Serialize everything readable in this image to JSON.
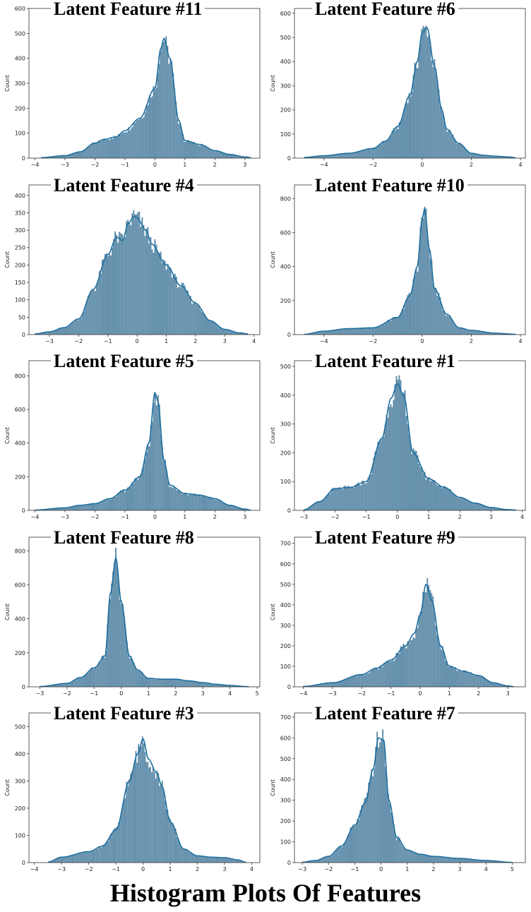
{
  "figure_title": "Histogram Plots Of Features",
  "colors": {
    "bar": "#5c8aa8",
    "bar_edge": "#ffffff",
    "kde": "#1f6f9f",
    "axis": "#333333"
  },
  "chart_data": [
    {
      "type": "bar",
      "subtype": "histogram_kde",
      "title": "Latent Feature #11",
      "ylabel": "Count",
      "xlabel": "",
      "xlim": [
        -4.2,
        3.5
      ],
      "ylim": [
        0,
        600
      ],
      "yticks": [
        0,
        100,
        200,
        300,
        400,
        500,
        600
      ],
      "xticks": [
        -4,
        -3,
        -2,
        -1,
        0,
        1,
        2,
        3
      ],
      "curve": {
        "x": [
          -3.8,
          -3,
          -2.5,
          -2,
          -1.7,
          -1.3,
          -1,
          -0.5,
          0,
          0.2,
          0.3,
          0.5,
          0.8,
          1,
          1.5,
          2,
          2.5,
          3,
          3.2
        ],
        "y": [
          2,
          10,
          25,
          60,
          75,
          85,
          110,
          160,
          280,
          440,
          480,
          400,
          150,
          70,
          55,
          30,
          15,
          5,
          2
        ]
      }
    },
    {
      "type": "bar",
      "subtype": "histogram_kde",
      "title": "Latent Feature #6",
      "ylabel": "Count",
      "xlabel": "",
      "xlim": [
        -5.2,
        4.2
      ],
      "ylim": [
        0,
        620
      ],
      "yticks": [
        0,
        100,
        200,
        300,
        400,
        500,
        600
      ],
      "xticks": [
        -4,
        -2,
        0,
        2,
        4
      ],
      "curve": {
        "x": [
          -4.8,
          -4,
          -3,
          -2,
          -1.5,
          -1,
          -0.5,
          -0.2,
          0,
          0.2,
          0.5,
          0.8,
          1,
          1.5,
          2,
          2.5,
          3,
          3.5,
          3.8
        ],
        "y": [
          3,
          10,
          20,
          40,
          70,
          130,
          260,
          400,
          520,
          540,
          380,
          200,
          120,
          60,
          20,
          12,
          8,
          5,
          2
        ]
      }
    },
    {
      "type": "bar",
      "subtype": "histogram_kde",
      "title": "Latent Feature #4",
      "ylabel": "Count",
      "xlabel": "",
      "xlim": [
        -3.7,
        4.2
      ],
      "ylim": [
        0,
        430
      ],
      "yticks": [
        0,
        50,
        100,
        150,
        200,
        250,
        300,
        350,
        400
      ],
      "xticks": [
        -3,
        -2,
        -1,
        0,
        1,
        2,
        3,
        4
      ],
      "curve": {
        "x": [
          -3.5,
          -3,
          -2.5,
          -2,
          -1.5,
          -1,
          -0.7,
          -0.5,
          -0.3,
          -0.1,
          0,
          0.3,
          0.5,
          1,
          1.5,
          2,
          2.5,
          3,
          3.5,
          3.8
        ],
        "y": [
          2,
          8,
          20,
          45,
          130,
          230,
          280,
          270,
          320,
          340,
          335,
          300,
          260,
          200,
          140,
          90,
          40,
          15,
          5,
          2
        ]
      }
    },
    {
      "type": "bar",
      "subtype": "histogram_kde",
      "title": "Latent Feature #10",
      "ylabel": "Count",
      "xlabel": "",
      "xlim": [
        -5.2,
        4.2
      ],
      "ylim": [
        0,
        880
      ],
      "yticks": [
        0,
        200,
        400,
        600,
        800
      ],
      "xticks": [
        -4,
        -2,
        0,
        2,
        4
      ],
      "curve": {
        "x": [
          -4.8,
          -4,
          -3,
          -2,
          -1,
          -0.5,
          -0.2,
          0,
          0.1,
          0.3,
          0.5,
          1,
          1.5,
          2,
          3,
          3.8
        ],
        "y": [
          2,
          20,
          35,
          40,
          100,
          230,
          400,
          680,
          740,
          500,
          270,
          120,
          40,
          25,
          8,
          2
        ]
      }
    },
    {
      "type": "bar",
      "subtype": "histogram_kde",
      "title": "Latent Feature #5",
      "ylabel": "Count",
      "xlabel": "",
      "xlim": [
        -4.2,
        3.5
      ],
      "ylim": [
        0,
        890
      ],
      "yticks": [
        0,
        200,
        400,
        600,
        800
      ],
      "xticks": [
        -4,
        -3,
        -2,
        -1,
        0,
        1,
        2,
        3
      ],
      "curve": {
        "x": [
          -4,
          -3,
          -2.5,
          -2,
          -1.5,
          -1,
          -0.5,
          -0.2,
          0,
          0.1,
          0.3,
          0.5,
          1,
          1.5,
          2,
          2.5,
          3,
          3.2
        ],
        "y": [
          2,
          15,
          30,
          40,
          70,
          120,
          200,
          400,
          700,
          650,
          300,
          150,
          100,
          90,
          70,
          30,
          8,
          2
        ]
      }
    },
    {
      "type": "bar",
      "subtype": "histogram_kde",
      "title": "Latent Feature #1",
      "ylabel": "Count",
      "xlabel": "",
      "xlim": [
        -3.3,
        4.1
      ],
      "ylim": [
        0,
        520
      ],
      "yticks": [
        0,
        100,
        200,
        300,
        400,
        500
      ],
      "xticks": [
        -3,
        -2,
        -1,
        0,
        1,
        2,
        3,
        4
      ],
      "curve": {
        "x": [
          -3,
          -2.5,
          -2,
          -1.5,
          -1,
          -0.5,
          -0.2,
          0,
          0.2,
          0.5,
          1,
          1.5,
          2,
          2.5,
          3,
          3.5,
          3.8
        ],
        "y": [
          2,
          30,
          75,
          80,
          100,
          250,
          390,
          440,
          400,
          200,
          110,
          80,
          45,
          25,
          10,
          3,
          1
        ]
      }
    },
    {
      "type": "bar",
      "subtype": "histogram_kde",
      "title": "Latent Feature #8",
      "ylabel": "Count",
      "xlabel": "",
      "xlim": [
        -3.4,
        5.1
      ],
      "ylim": [
        0,
        880
      ],
      "yticks": [
        0,
        200,
        400,
        600,
        800
      ],
      "xticks": [
        -3,
        -2,
        -1,
        0,
        1,
        2,
        3,
        4,
        5
      ],
      "curve": {
        "x": [
          -3,
          -2,
          -1.5,
          -1,
          -0.6,
          -0.4,
          -0.2,
          0,
          0.3,
          0.6,
          1,
          1.5,
          2,
          2.5,
          3,
          3.5,
          4,
          4.7
        ],
        "y": [
          2,
          20,
          55,
          110,
          180,
          550,
          760,
          500,
          180,
          100,
          50,
          45,
          45,
          35,
          25,
          15,
          8,
          1
        ]
      }
    },
    {
      "type": "bar",
      "subtype": "histogram_kde",
      "title": "Latent Feature #9",
      "ylabel": "Count",
      "xlabel": "",
      "xlim": [
        -4.3,
        3.6
      ],
      "ylim": [
        0,
        730
      ],
      "yticks": [
        0,
        100,
        200,
        300,
        400,
        500,
        600,
        700
      ],
      "xticks": [
        -4,
        -3,
        -2,
        -1,
        0,
        1,
        2,
        3
      ],
      "curve": {
        "x": [
          -4,
          -3,
          -2,
          -1.5,
          -1,
          -0.5,
          -0.2,
          0,
          0.2,
          0.4,
          0.7,
          1,
          1.5,
          2,
          2.5,
          3,
          3.2
        ],
        "y": [
          2,
          20,
          60,
          90,
          130,
          200,
          260,
          350,
          500,
          420,
          200,
          100,
          75,
          55,
          20,
          5,
          1
        ]
      }
    },
    {
      "type": "bar",
      "subtype": "histogram_kde",
      "title": "Latent Feature #3",
      "ylabel": "Count",
      "xlabel": "",
      "xlim": [
        -4.2,
        4.3
      ],
      "ylim": [
        0,
        550
      ],
      "yticks": [
        0,
        100,
        200,
        300,
        400,
        500
      ],
      "xticks": [
        -4,
        -3,
        -2,
        -1,
        0,
        1,
        2,
        3,
        4
      ],
      "curve": {
        "x": [
          -3.5,
          -3,
          -2,
          -1.5,
          -1,
          -0.5,
          -0.2,
          0,
          0.2,
          0.5,
          0.7,
          1,
          1.5,
          2,
          2.5,
          3,
          3.5,
          3.8
        ],
        "y": [
          2,
          20,
          40,
          60,
          120,
          300,
          400,
          455,
          380,
          330,
          280,
          150,
          50,
          25,
          20,
          18,
          10,
          1
        ]
      }
    },
    {
      "type": "bar",
      "subtype": "histogram_kde",
      "title": "Latent Feature #7",
      "ylabel": "Count",
      "xlabel": "",
      "xlim": [
        -3.3,
        5.5
      ],
      "ylim": [
        0,
        720
      ],
      "yticks": [
        0,
        100,
        200,
        300,
        400,
        500,
        600,
        700
      ],
      "xticks": [
        -3,
        -2,
        -1,
        0,
        1,
        2,
        3,
        4,
        5
      ],
      "curve": {
        "x": [
          -3,
          -2.5,
          -2,
          -1.5,
          -1,
          -0.6,
          -0.3,
          -0.1,
          0.1,
          0.3,
          0.6,
          1,
          1.5,
          2,
          3,
          4,
          5
        ],
        "y": [
          2,
          10,
          30,
          80,
          180,
          290,
          450,
          600,
          590,
          300,
          120,
          60,
          40,
          30,
          20,
          10,
          1
        ]
      }
    }
  ]
}
